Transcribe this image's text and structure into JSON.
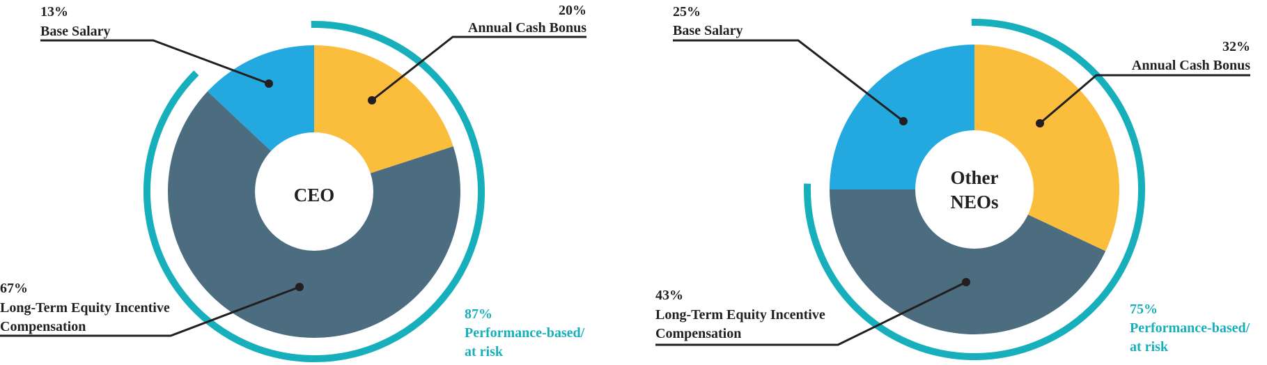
{
  "colors": {
    "base_salary": "#23A8E0",
    "annual_cash_bonus": "#FBBD3C",
    "long_term_equity": "#4C6C80",
    "performance_ring": "#16AFBB",
    "text_dark": "#231F20",
    "center_fill": "#FFFFFF"
  },
  "chart_data": [
    {
      "type": "pie",
      "center_label": "CEO",
      "slices": [
        {
          "label": "Base Salary",
          "pct_label": "13%",
          "value": 13
        },
        {
          "label": "Annual Cash Bonus",
          "pct_label": "20%",
          "value": 20
        },
        {
          "label_lines": [
            "Long-Term Equity Incentive",
            "Compensation"
          ],
          "pct_label": "67%",
          "value": 67
        }
      ],
      "performance": {
        "pct_label": "87%",
        "label_lines": [
          "Performance-based/",
          "at risk"
        ],
        "value": 87
      }
    },
    {
      "type": "pie",
      "center_label_lines": [
        "Other",
        "NEOs"
      ],
      "slices": [
        {
          "label": "Base Salary",
          "pct_label": "25%",
          "value": 25
        },
        {
          "label": "Annual Cash Bonus",
          "pct_label": "32%",
          "value": 32
        },
        {
          "label_lines": [
            "Long-Term Equity Incentive",
            "Compensation"
          ],
          "pct_label": "43%",
          "value": 43
        }
      ],
      "performance": {
        "pct_label": "75%",
        "label_lines": [
          "Performance-based/",
          "at risk"
        ],
        "value": 75
      }
    }
  ]
}
